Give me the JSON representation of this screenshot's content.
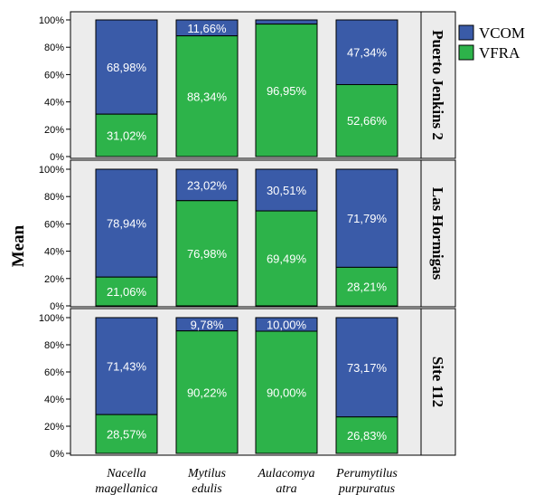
{
  "chart_data": {
    "type": "bar",
    "stacked": true,
    "ylabel": "Mean",
    "yticks": [
      "0%",
      "20%",
      "40%",
      "60%",
      "80%",
      "100%"
    ],
    "ylim": [
      0,
      100
    ],
    "categories": [
      [
        "Nacella",
        "magellanica"
      ],
      [
        "Mytilus",
        "edulis"
      ],
      [
        "Aulacomya",
        "atra"
      ],
      [
        "Perumytilus",
        "purpuratus"
      ]
    ],
    "legend": [
      {
        "name": "VCOM",
        "color": "#3a5ba8"
      },
      {
        "name": "VFRA",
        "color": "#2db34a"
      }
    ],
    "legend_position": "top-right",
    "panels": [
      {
        "label": "Puerto Jenkins 2",
        "VFRA": [
          31.02,
          88.34,
          96.95,
          52.66
        ],
        "VCOM": [
          68.98,
          11.66,
          3.05,
          47.34
        ],
        "VFRA_labels": [
          "31,02%",
          "88,34%",
          "96,95%",
          "52,66%"
        ],
        "VCOM_labels": [
          "68,98%",
          "11,66%",
          "",
          "47,34%"
        ]
      },
      {
        "label": "Las Hormigas",
        "VFRA": [
          21.06,
          76.98,
          69.49,
          28.21
        ],
        "VCOM": [
          78.94,
          23.02,
          30.51,
          71.79
        ],
        "VFRA_labels": [
          "21,06%",
          "76,98%",
          "69,49%",
          "28,21%"
        ],
        "VCOM_labels": [
          "78,94%",
          "23,02%",
          "30,51%",
          "71,79%"
        ]
      },
      {
        "label": "Site 112",
        "VFRA": [
          28.57,
          90.22,
          90.0,
          26.83
        ],
        "VCOM": [
          71.43,
          9.78,
          10.0,
          73.17
        ],
        "VFRA_labels": [
          "28,57%",
          "90,22%",
          "90,00%",
          "26,83%"
        ],
        "VCOM_labels": [
          "71,43%",
          "9,78%",
          "10,00%",
          "73,17%"
        ]
      }
    ]
  }
}
